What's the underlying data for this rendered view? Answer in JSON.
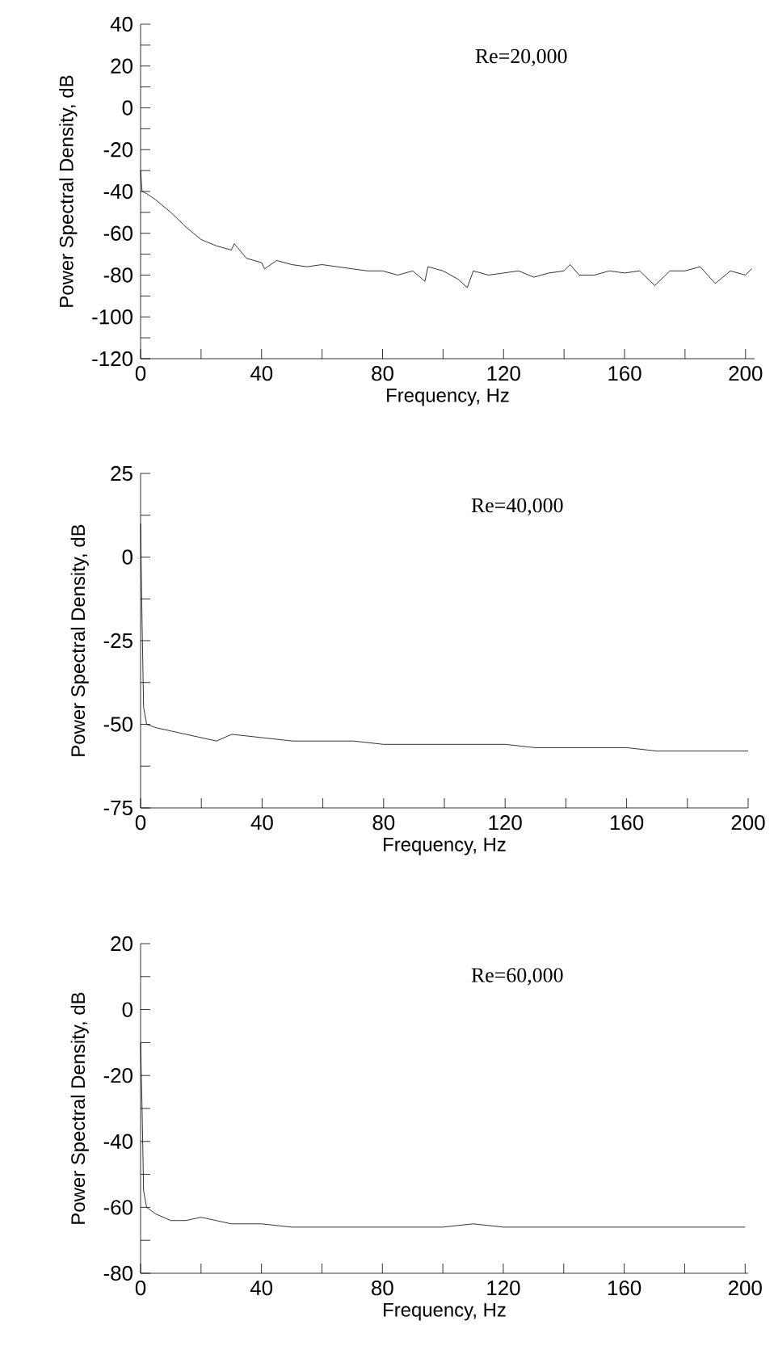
{
  "chart_data": [
    {
      "type": "line",
      "xlabel": "Frequency, Hz",
      "ylabel": "Power Spectral Density, dB",
      "annotations": [
        "Re=20,000"
      ],
      "xlim": [
        0,
        203
      ],
      "ylim": [
        -120,
        40
      ],
      "xticks": [
        0,
        {
          "value": 20,
          "label": null
        },
        40,
        {
          "value": 60,
          "label": null
        },
        80,
        {
          "value": 100,
          "label": null
        },
        120,
        {
          "value": 140,
          "label": null
        },
        160,
        {
          "value": 180,
          "label": null
        },
        200
      ],
      "yticks": [
        -120,
        {
          "value": -110,
          "label": null
        },
        -100,
        {
          "value": -90,
          "label": null
        },
        -80,
        {
          "value": -70,
          "label": null
        },
        -60,
        {
          "value": -50,
          "label": null
        },
        -40,
        {
          "value": -30,
          "label": null
        },
        -20,
        {
          "value": -10,
          "label": null
        },
        0,
        {
          "value": 10,
          "label": null
        },
        20,
        {
          "value": 30,
          "label": null
        },
        40
      ],
      "series": [
        {
          "color": "#000000",
          "x": [
            0,
            0.5,
            2,
            5,
            10,
            15,
            20,
            25,
            30,
            31,
            35,
            40,
            41,
            45,
            50,
            55,
            60,
            65,
            70,
            75,
            80,
            85,
            90,
            94,
            95,
            100,
            105,
            108,
            110,
            115,
            120,
            125,
            130,
            135,
            140,
            142,
            145,
            150,
            155,
            160,
            165,
            170,
            175,
            180,
            185,
            190,
            195,
            200,
            202
          ],
          "values": [
            -30,
            -40,
            -41,
            -44,
            -50,
            -57,
            -63,
            -66,
            -68,
            -65,
            -72,
            -74,
            -77,
            -73,
            -75,
            -76,
            -75,
            -76,
            -77,
            -78,
            -78,
            -80,
            -78,
            -83,
            -76,
            -78,
            -82,
            -86,
            -78,
            -80,
            -79,
            -78,
            -81,
            -79,
            -78,
            -75,
            -80,
            -80,
            -78,
            -79,
            -78,
            -85,
            -78,
            -78,
            -76,
            -84,
            -78,
            -80,
            -77
          ]
        }
      ]
    },
    {
      "type": "line",
      "xlabel": "Frequency, Hz",
      "ylabel": "Power Spectral Density, dB",
      "annotations": [
        "Re=40,000"
      ],
      "xlim": [
        0,
        200
      ],
      "ylim": [
        -75,
        25
      ],
      "xticks": [
        0,
        {
          "value": 20,
          "label": null
        },
        40,
        {
          "value": 60,
          "label": null
        },
        80,
        {
          "value": 100,
          "label": null
        },
        120,
        {
          "value": 140,
          "label": null
        },
        160,
        {
          "value": 180,
          "label": null
        },
        200
      ],
      "yticks": [
        -75,
        {
          "value": -62.5,
          "label": null
        },
        -50,
        {
          "value": -37.5,
          "label": null
        },
        -25,
        {
          "value": -12.5,
          "label": null
        },
        0,
        {
          "value": 12.5,
          "label": null
        },
        25
      ],
      "series": [
        {
          "color": "#000000",
          "x": [
            0,
            0.5,
            1,
            2,
            5,
            10,
            15,
            20,
            25,
            30,
            40,
            50,
            60,
            70,
            80,
            90,
            100,
            110,
            120,
            130,
            140,
            150,
            160,
            170,
            180,
            190,
            200
          ],
          "values": [
            10,
            -20,
            -45,
            -50,
            -51,
            -52,
            -53,
            -54,
            -55,
            -53,
            -54,
            -55,
            -55,
            -55,
            -56,
            -56,
            -56,
            -56,
            -56,
            -57,
            -57,
            -57,
            -57,
            -58,
            -58,
            -58,
            -58
          ]
        }
      ]
    },
    {
      "type": "line",
      "xlabel": "Frequency, Hz",
      "ylabel": "Power Spectral Density, dB",
      "annotations": [
        "Re=60,000"
      ],
      "xlim": [
        0,
        201
      ],
      "ylim": [
        -80,
        20
      ],
      "xticks": [
        0,
        {
          "value": 20,
          "label": null
        },
        40,
        {
          "value": 60,
          "label": null
        },
        80,
        {
          "value": 100,
          "label": null
        },
        120,
        {
          "value": 140,
          "label": null
        },
        160,
        {
          "value": 180,
          "label": null
        },
        200
      ],
      "yticks": [
        -80,
        {
          "value": -70,
          "label": null
        },
        -60,
        {
          "value": -50,
          "label": null
        },
        -40,
        {
          "value": -30,
          "label": null
        },
        -20,
        {
          "value": -10,
          "label": null
        },
        0,
        {
          "value": 10,
          "label": null
        },
        20
      ],
      "series": [
        {
          "color": "#000000",
          "x": [
            0,
            0.5,
            1,
            2,
            5,
            10,
            15,
            20,
            25,
            30,
            40,
            50,
            60,
            80,
            100,
            110,
            120,
            140,
            160,
            180,
            200
          ],
          "values": [
            -10,
            -30,
            -55,
            -60,
            -62,
            -64,
            -64,
            -63,
            -64,
            -65,
            -65,
            -66,
            -66,
            -66,
            -66,
            -65,
            -66,
            -66,
            -66,
            -66,
            -66
          ]
        }
      ]
    }
  ]
}
